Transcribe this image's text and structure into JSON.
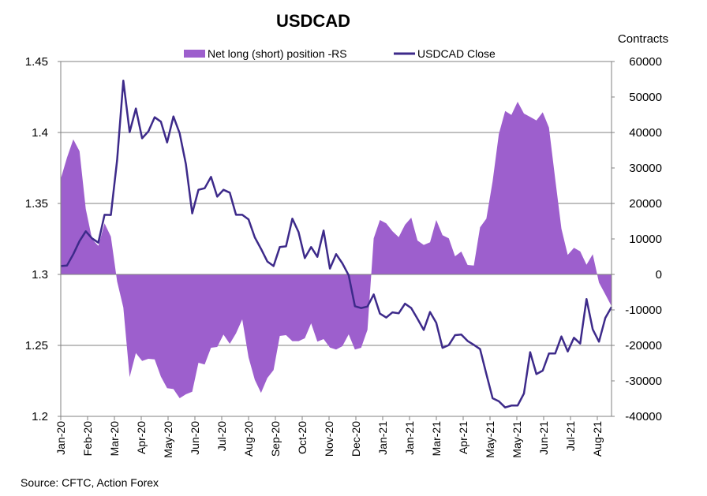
{
  "chart_data": {
    "type": "line+area",
    "title": "USDCAD",
    "right_axis_title": "Contracts",
    "source": "Source: CFTC, Action Forex",
    "colors": {
      "area": "#9d5fcd",
      "line": "#3d2a8a",
      "grid": "#808080"
    },
    "left_axis": {
      "ylim": [
        1.2,
        1.45
      ],
      "ticks": [
        1.2,
        1.25,
        1.3,
        1.35,
        1.4,
        1.45
      ],
      "tick_labels": [
        "1.2",
        "1.25",
        "1.3",
        "1.35",
        "1.4",
        "1.45"
      ]
    },
    "right_axis": {
      "ylim": [
        -40000,
        60000
      ],
      "ticks": [
        -40000,
        -30000,
        -20000,
        -10000,
        0,
        10000,
        20000,
        30000,
        40000,
        50000,
        60000
      ],
      "tick_labels": [
        "-40000",
        "-30000",
        "-20000",
        "-10000",
        "0",
        "10000",
        "20000",
        "30000",
        "40000",
        "50000",
        "60000"
      ]
    },
    "x_tick_labels": [
      "Jan-20",
      "Feb-20",
      "Mar-20",
      "Apr-20",
      "May-20",
      "Jun-20",
      "Jul-20",
      "Aug-20",
      "Sep-20",
      "Oct-20",
      "Nov-20",
      "Dec-20",
      "Jan-21",
      "Jan-21",
      "Mar-21",
      "Apr-21",
      "May-21",
      "May-21",
      "Jun-21",
      "Jul-21",
      "Aug-21"
    ],
    "grid": "horizontal",
    "legend": {
      "placement": "top-center",
      "entries": [
        "Net long (short) position -RS",
        "USDCAD Close"
      ]
    },
    "series": [
      {
        "name": "Net long (short) position -RS",
        "type": "area",
        "axis": "right",
        "values": [
          26960,
          32900,
          38070,
          34740,
          18440,
          9930,
          8070,
          14370,
          10670,
          -1930,
          -9330,
          -28960,
          -22150,
          -24370,
          -23780,
          -23930,
          -28810,
          -32070,
          -32300,
          -34890,
          -33780,
          -33040,
          -24890,
          -25410,
          -20670,
          -20440,
          -16960,
          -19560,
          -16590,
          -12670,
          -23410,
          -29700,
          -33410,
          -29190,
          -26960,
          -17330,
          -17110,
          -18810,
          -18810,
          -18000,
          -13780,
          -18960,
          -18220,
          -20590,
          -21180,
          -20220,
          -16890,
          -21180,
          -20670,
          -15630,
          10150,
          15330,
          14370,
          12150,
          10520,
          14000,
          16000,
          9560,
          8300,
          9040,
          15330,
          11040,
          10150,
          5110,
          6440,
          2670,
          2520,
          13260,
          15700,
          26220,
          39550,
          46070,
          44960,
          48660,
          45330,
          44370,
          43400,
          45700,
          41400,
          26960,
          12890,
          5480,
          7480,
          6520,
          2740,
          5700,
          -2300,
          -5630,
          -8960
        ]
      },
      {
        "name": "USDCAD Close",
        "type": "line",
        "axis": "left",
        "values": [
          1.3059,
          1.3063,
          1.3143,
          1.3235,
          1.3304,
          1.3254,
          1.3224,
          1.342,
          1.3419,
          1.3804,
          1.4365,
          1.4002,
          1.4169,
          1.3959,
          1.4007,
          1.4107,
          1.4076,
          1.393,
          1.4113,
          1.3994,
          1.3776,
          1.343,
          1.3596,
          1.3607,
          1.3687,
          1.3548,
          1.3596,
          1.3576,
          1.342,
          1.342,
          1.3387,
          1.3261,
          1.318,
          1.3091,
          1.3059,
          1.3193,
          1.3198,
          1.3393,
          1.3298,
          1.3115,
          1.3193,
          1.3124,
          1.3309,
          1.3041,
          1.3143,
          1.3078,
          1.2994,
          1.2776,
          1.2763,
          1.2774,
          1.2859,
          1.2724,
          1.2696,
          1.2733,
          1.2726,
          1.2794,
          1.2763,
          1.2687,
          1.2609,
          1.2735,
          1.2659,
          1.2483,
          1.2502,
          1.2572,
          1.2576,
          1.2531,
          1.2504,
          1.2474,
          1.2298,
          1.2128,
          1.2106,
          1.2063,
          1.2076,
          1.2076,
          1.2161,
          1.2452,
          1.2298,
          1.2322,
          1.2443,
          1.2443,
          1.2563,
          1.2457,
          1.2554,
          1.2513,
          1.2826,
          1.2613,
          1.2526,
          1.2693,
          1.277
        ]
      }
    ]
  }
}
